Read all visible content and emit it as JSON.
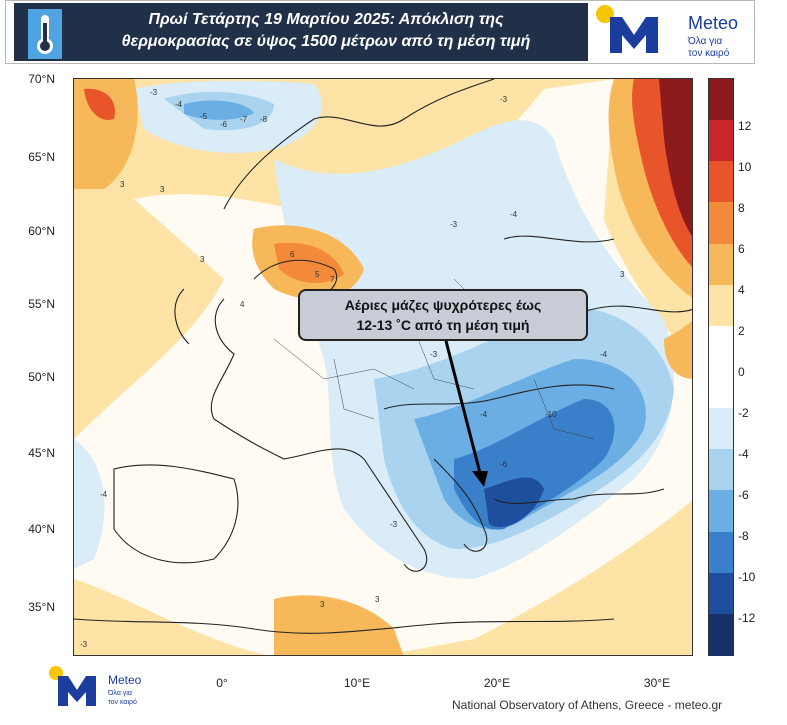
{
  "header": {
    "title_line1": "Πρωί Τετάρτης 19 Μαρτίου 2025: Απόκλιση της",
    "title_line2": "θερμοκρασίας σε ύψος 1500 μέτρων από τη μέση τιμή",
    "logo_brand": "Meteo",
    "logo_tagline_1": "Όλα για",
    "logo_tagline_2": "τον καιρό"
  },
  "map": {
    "lat_labels": [
      "70°N",
      "65°N",
      "60°N",
      "55°N",
      "50°N",
      "45°N",
      "40°N",
      "35°N"
    ],
    "lon_labels": [
      "0°",
      "10°E",
      "20°E",
      "30°E"
    ],
    "callout_line1": "Αέριες μάζες ψυχρότερες έως",
    "callout_line2": "12-13 ˚C από τη μέση τιμή",
    "contour_samples": [
      "-3",
      "-4",
      "-5",
      "-6",
      "-7",
      "-8",
      "-3",
      "-4",
      "3",
      "3",
      "4",
      "5",
      "7",
      "6",
      "-10",
      "3",
      "-4",
      "-3",
      "3",
      "-3",
      "-4",
      "-6",
      "-4",
      "-3",
      "3",
      "3",
      "-3"
    ]
  },
  "colorbar": {
    "labels": [
      "12",
      "10",
      "8",
      "6",
      "4",
      "2",
      "0",
      "-2",
      "-4",
      "-6",
      "-8",
      "-10",
      "-12"
    ],
    "colors": [
      "#8e1b1b",
      "#c8262a",
      "#e8552a",
      "#f28a3a",
      "#f7b85a",
      "#fde3a6",
      "#ffffff",
      "#ffffff",
      "#d9ecf7",
      "#a9d3ef",
      "#6aaee3",
      "#3a7fc9",
      "#1d4f9e",
      "#16306a"
    ]
  },
  "footer": {
    "credit": "National Observatory of Athens, Greece - meteo.gr",
    "logo_brand": "Meteo",
    "logo_tagline_1": "Όλα για",
    "logo_tagline_2": "τον καιρό"
  },
  "colors": {
    "title_bg": "#1f3048",
    "logo_blue": "#1a3d9e",
    "logo_sun": "#f6c700",
    "cold_core": "#1d4f9e",
    "warm_core": "#c8262a"
  }
}
